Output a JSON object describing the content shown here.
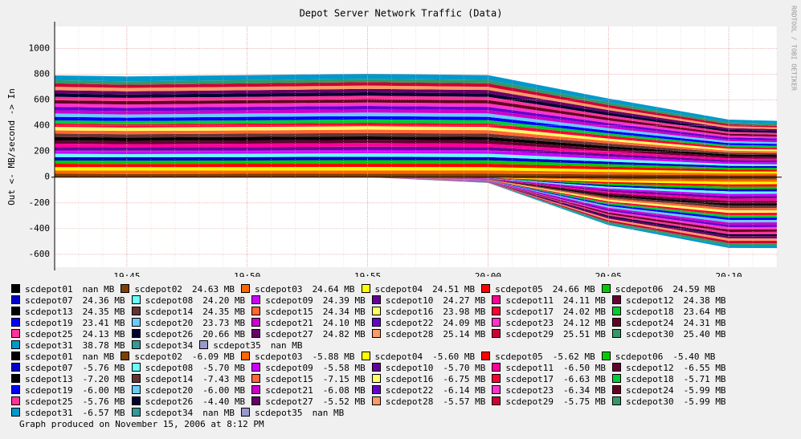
{
  "chart_data": {
    "type": "stacked-area",
    "title": "Depot Server Network Traffic (Data)",
    "ylabel": "Out <-  MB/second -> In",
    "credit": "RRDTOOL / TOBI OETIKER",
    "footer": "Graph produced on November 15, 2006 at 8:12 PM",
    "x": [
      "19:42",
      "19:45",
      "19:50",
      "19:55",
      "20:00",
      "20:05",
      "20:10",
      "20:12"
    ],
    "xlim": [
      "19:42",
      "20:12"
    ],
    "xticks": [
      "19:45",
      "19:50",
      "19:55",
      "20:00",
      "20:05",
      "20:10"
    ],
    "ylim": [
      -700,
      1170
    ],
    "yticks": [
      -600,
      -400,
      -200,
      0,
      200,
      400,
      600,
      800,
      1000
    ],
    "grid": true,
    "series": [
      {
        "name": "scdepot01",
        "color": "#000000",
        "legend_value": "nan MB",
        "values": [
          null,
          null,
          null,
          null,
          null,
          null,
          null,
          null
        ]
      },
      {
        "name": "scdepot02",
        "color": "#7f3f00",
        "legend_value": "24.63 MB",
        "values": [
          26,
          25,
          26,
          27,
          26,
          21,
          15,
          14
        ]
      },
      {
        "name": "scdepot03",
        "color": "#ff6600",
        "legend_value": "24.64 MB",
        "values": [
          25,
          26,
          25,
          26,
          27,
          20,
          14,
          15
        ]
      },
      {
        "name": "scdepot04",
        "color": "#ffff00",
        "legend_value": "24.51 MB",
        "values": [
          27,
          26,
          27,
          26,
          25,
          19,
          15,
          14
        ]
      },
      {
        "name": "scdepot05",
        "color": "#ff0000",
        "legend_value": "24.66 MB",
        "values": [
          26,
          25,
          26,
          27,
          26,
          21,
          15,
          14
        ]
      },
      {
        "name": "scdepot06",
        "color": "#00cc00",
        "legend_value": "24.59 MB",
        "values": [
          25,
          26,
          25,
          26,
          27,
          20,
          14,
          15
        ]
      },
      {
        "name": "scdepot07",
        "color": "#0000cc",
        "legend_value": "24.36 MB",
        "values": [
          27,
          26,
          27,
          26,
          25,
          19,
          15,
          14
        ]
      },
      {
        "name": "scdepot08",
        "color": "#66ffff",
        "legend_value": "24.20 MB",
        "values": [
          26,
          25,
          26,
          27,
          26,
          21,
          15,
          14
        ]
      },
      {
        "name": "scdepot09",
        "color": "#cc00ff",
        "legend_value": "24.39 MB",
        "values": [
          25,
          26,
          25,
          26,
          27,
          20,
          14,
          15
        ]
      },
      {
        "name": "scdepot10",
        "color": "#660099",
        "legend_value": "24.27 MB",
        "values": [
          27,
          26,
          27,
          26,
          25,
          19,
          15,
          14
        ]
      },
      {
        "name": "scdepot11",
        "color": "#ff0099",
        "legend_value": "24.11 MB",
        "values": [
          26,
          25,
          26,
          27,
          26,
          21,
          15,
          14
        ]
      },
      {
        "name": "scdepot12",
        "color": "#660033",
        "legend_value": "24.38 MB",
        "values": [
          25,
          26,
          25,
          26,
          27,
          20,
          14,
          15
        ]
      },
      {
        "name": "scdepot13",
        "color": "#000000",
        "legend_value": "24.35 MB",
        "values": [
          27,
          26,
          27,
          26,
          25,
          19,
          15,
          14
        ]
      },
      {
        "name": "scdepot14",
        "color": "#663333",
        "legend_value": "24.35 MB",
        "values": [
          26,
          25,
          26,
          27,
          26,
          21,
          15,
          14
        ]
      },
      {
        "name": "scdepot15",
        "color": "#ff6633",
        "legend_value": "24.34 MB",
        "values": [
          25,
          26,
          25,
          26,
          27,
          20,
          14,
          15
        ]
      },
      {
        "name": "scdepot16",
        "color": "#ffff66",
        "legend_value": "23.98 MB",
        "values": [
          27,
          26,
          27,
          26,
          25,
          19,
          15,
          14
        ]
      },
      {
        "name": "scdepot17",
        "color": "#ff0033",
        "legend_value": "24.02 MB",
        "values": [
          26,
          25,
          26,
          27,
          26,
          21,
          15,
          14
        ]
      },
      {
        "name": "scdepot18",
        "color": "#00cc33",
        "legend_value": "23.64 MB",
        "values": [
          25,
          26,
          25,
          26,
          27,
          20,
          14,
          15
        ]
      },
      {
        "name": "scdepot19",
        "color": "#0000ff",
        "legend_value": "23.41 MB",
        "values": [
          27,
          26,
          27,
          26,
          25,
          19,
          15,
          14
        ]
      },
      {
        "name": "scdepot20",
        "color": "#66ccff",
        "legend_value": "23.73 MB",
        "values": [
          26,
          25,
          26,
          27,
          26,
          21,
          15,
          14
        ]
      },
      {
        "name": "scdepot21",
        "color": "#cc00cc",
        "legend_value": "24.10 MB",
        "values": [
          25,
          26,
          25,
          26,
          27,
          20,
          14,
          15
        ]
      },
      {
        "name": "scdepot22",
        "color": "#6600cc",
        "legend_value": "24.09 MB",
        "values": [
          27,
          26,
          27,
          26,
          25,
          19,
          15,
          14
        ]
      },
      {
        "name": "scdepot23",
        "color": "#ff33cc",
        "legend_value": "24.12 MB",
        "values": [
          26,
          25,
          26,
          27,
          26,
          21,
          15,
          14
        ]
      },
      {
        "name": "scdepot24",
        "color": "#660022",
        "legend_value": "24.31 MB",
        "values": [
          25,
          26,
          25,
          26,
          27,
          20,
          14,
          15
        ]
      },
      {
        "name": "scdepot25",
        "color": "#ff3399",
        "legend_value": "24.13 MB",
        "values": [
          27,
          26,
          27,
          26,
          25,
          19,
          15,
          14
        ]
      },
      {
        "name": "scdepot26",
        "color": "#000033",
        "legend_value": "20.66 MB",
        "values": [
          26,
          25,
          26,
          27,
          26,
          21,
          15,
          14
        ]
      },
      {
        "name": "scdepot27",
        "color": "#660066",
        "legend_value": "24.82 MB",
        "values": [
          25,
          26,
          25,
          26,
          27,
          20,
          14,
          15
        ]
      },
      {
        "name": "scdepot28",
        "color": "#ff9966",
        "legend_value": "25.14 MB",
        "values": [
          27,
          26,
          27,
          26,
          25,
          19,
          15,
          14
        ]
      },
      {
        "name": "scdepot29",
        "color": "#cc0033",
        "legend_value": "25.51 MB",
        "values": [
          26,
          25,
          26,
          27,
          26,
          21,
          15,
          14
        ]
      },
      {
        "name": "scdepot30",
        "color": "#339966",
        "legend_value": "25.40 MB",
        "values": [
          25,
          26,
          25,
          26,
          27,
          20,
          14,
          15
        ]
      },
      {
        "name": "scdepot31",
        "color": "#0099cc",
        "legend_value": "38.78 MB",
        "values": [
          37,
          38,
          39,
          38,
          37,
          30,
          22,
          21
        ]
      },
      {
        "name": "scdepot34",
        "color": "#339999",
        "values": [
          null,
          null,
          null,
          null,
          null,
          null,
          null,
          null
        ]
      },
      {
        "name": "scdepot35",
        "color": "#9999cc",
        "legend_value": "nan MB",
        "values": [
          null,
          null,
          null,
          null,
          null,
          null,
          null,
          null
        ]
      },
      {
        "name": "scdepot01",
        "color": "#000000",
        "legend_value": "nan MB",
        "values": [
          null,
          null,
          null,
          null,
          null,
          null,
          null,
          null
        ]
      },
      {
        "name": "scdepot02",
        "color": "#7f3f00",
        "legend_value": "-6.09 MB",
        "values": [
          0,
          0,
          0,
          0,
          -1,
          -13,
          -19,
          -18
        ]
      },
      {
        "name": "scdepot03",
        "color": "#ff6600",
        "legend_value": "-5.88 MB",
        "values": [
          0,
          0,
          0,
          0,
          -2,
          -12,
          -18,
          -19
        ]
      },
      {
        "name": "scdepot04",
        "color": "#ffff00",
        "legend_value": "-5.60 MB",
        "values": [
          0,
          0,
          0,
          0,
          -1,
          -13,
          -19,
          -18
        ]
      },
      {
        "name": "scdepot05",
        "color": "#ff0000",
        "legend_value": "-5.62 MB",
        "values": [
          0,
          0,
          0,
          0,
          -2,
          -12,
          -18,
          -19
        ]
      },
      {
        "name": "scdepot06",
        "color": "#00cc00",
        "legend_value": "-5.40 MB",
        "values": [
          0,
          0,
          0,
          0,
          -1,
          -13,
          -19,
          -18
        ]
      },
      {
        "name": "scdepot07",
        "color": "#0000cc",
        "legend_value": "-5.76 MB",
        "values": [
          0,
          0,
          0,
          0,
          -2,
          -12,
          -18,
          -19
        ]
      },
      {
        "name": "scdepot08",
        "color": "#66ffff",
        "legend_value": "-5.70 MB",
        "values": [
          0,
          0,
          0,
          0,
          -1,
          -13,
          -19,
          -18
        ]
      },
      {
        "name": "scdepot09",
        "color": "#cc00ff",
        "legend_value": "-5.58 MB",
        "values": [
          0,
          0,
          0,
          0,
          -2,
          -12,
          -18,
          -19
        ]
      },
      {
        "name": "scdepot10",
        "color": "#660099",
        "legend_value": "-5.70 MB",
        "values": [
          0,
          0,
          0,
          0,
          -1,
          -13,
          -19,
          -18
        ]
      },
      {
        "name": "scdepot11",
        "color": "#ff0099",
        "legend_value": "-6.50 MB",
        "values": [
          0,
          0,
          0,
          0,
          -2,
          -12,
          -18,
          -19
        ]
      },
      {
        "name": "scdepot12",
        "color": "#660033",
        "legend_value": "-6.55 MB",
        "values": [
          0,
          0,
          0,
          0,
          -1,
          -13,
          -19,
          -18
        ]
      },
      {
        "name": "scdepot13",
        "color": "#000000",
        "legend_value": "-7.20 MB",
        "values": [
          0,
          0,
          0,
          0,
          -2,
          -12,
          -18,
          -19
        ]
      },
      {
        "name": "scdepot14",
        "color": "#663333",
        "legend_value": "-7.43 MB",
        "values": [
          0,
          0,
          0,
          0,
          -1,
          -13,
          -19,
          -18
        ]
      },
      {
        "name": "scdepot15",
        "color": "#ff6633",
        "legend_value": "-7.15 MB",
        "values": [
          0,
          0,
          0,
          0,
          -2,
          -12,
          -18,
          -19
        ]
      },
      {
        "name": "scdepot16",
        "color": "#ffff66",
        "legend_value": "-6.75 MB",
        "values": [
          0,
          0,
          0,
          0,
          -1,
          -13,
          -19,
          -18
        ]
      },
      {
        "name": "scdepot17",
        "color": "#ff0033",
        "legend_value": "-6.63 MB",
        "values": [
          0,
          0,
          0,
          0,
          -2,
          -12,
          -18,
          -19
        ]
      },
      {
        "name": "scdepot18",
        "color": "#00cc33",
        "legend_value": "-5.71 MB",
        "values": [
          0,
          0,
          0,
          0,
          -1,
          -13,
          -19,
          -18
        ]
      },
      {
        "name": "scdepot19",
        "color": "#0000ff",
        "legend_value": "-6.00 MB",
        "values": [
          0,
          0,
          0,
          0,
          -2,
          -12,
          -18,
          -19
        ]
      },
      {
        "name": "scdepot20",
        "color": "#66ccff",
        "legend_value": "-6.00 MB",
        "values": [
          0,
          0,
          0,
          0,
          -1,
          -13,
          -19,
          -18
        ]
      },
      {
        "name": "scdepot21",
        "color": "#cc00cc",
        "legend_value": "-6.08 MB",
        "values": [
          0,
          0,
          0,
          0,
          -2,
          -12,
          -18,
          -19
        ]
      },
      {
        "name": "scdepot22",
        "color": "#6600cc",
        "legend_value": "-6.14 MB",
        "values": [
          0,
          0,
          0,
          0,
          -1,
          -13,
          -19,
          -18
        ]
      },
      {
        "name": "scdepot23",
        "color": "#ff33cc",
        "legend_value": "-6.34 MB",
        "values": [
          0,
          0,
          0,
          0,
          -2,
          -12,
          -18,
          -19
        ]
      },
      {
        "name": "scdepot24",
        "color": "#660022",
        "legend_value": "-5.99 MB",
        "values": [
          0,
          0,
          0,
          0,
          -1,
          -13,
          -19,
          -18
        ]
      },
      {
        "name": "scdepot25",
        "color": "#ff3399",
        "legend_value": "-5.76 MB",
        "values": [
          0,
          0,
          0,
          0,
          -2,
          -12,
          -18,
          -19
        ]
      },
      {
        "name": "scdepot26",
        "color": "#000033",
        "legend_value": "-4.40 MB",
        "values": [
          0,
          0,
          0,
          0,
          -1,
          -10,
          -14,
          -14
        ]
      },
      {
        "name": "scdepot27",
        "color": "#660066",
        "legend_value": "-5.52 MB",
        "values": [
          0,
          0,
          0,
          0,
          -2,
          -12,
          -18,
          -19
        ]
      },
      {
        "name": "scdepot28",
        "color": "#ff9966",
        "legend_value": "-5.57 MB",
        "values": [
          0,
          0,
          0,
          0,
          -1,
          -13,
          -19,
          -18
        ]
      },
      {
        "name": "scdepot29",
        "color": "#cc0033",
        "legend_value": "-5.75 MB",
        "values": [
          0,
          0,
          0,
          0,
          -2,
          -12,
          -18,
          -19
        ]
      },
      {
        "name": "scdepot30",
        "color": "#339966",
        "legend_value": "-5.99 MB",
        "values": [
          0,
          0,
          0,
          0,
          -1,
          -13,
          -19,
          -18
        ]
      },
      {
        "name": "scdepot31",
        "color": "#0099cc",
        "legend_value": "-6.57 MB",
        "values": [
          0,
          0,
          0,
          0,
          -2,
          -12,
          -18,
          -19
        ]
      },
      {
        "name": "scdepot34",
        "color": "#339999",
        "legend_value": "nan MB",
        "values": [
          null,
          null,
          null,
          null,
          null,
          null,
          null,
          null
        ]
      },
      {
        "name": "scdepot35",
        "color": "#9999cc",
        "legend_value": "nan MB",
        "values": [
          null,
          null,
          null,
          null,
          null,
          null,
          null,
          null
        ]
      }
    ]
  }
}
